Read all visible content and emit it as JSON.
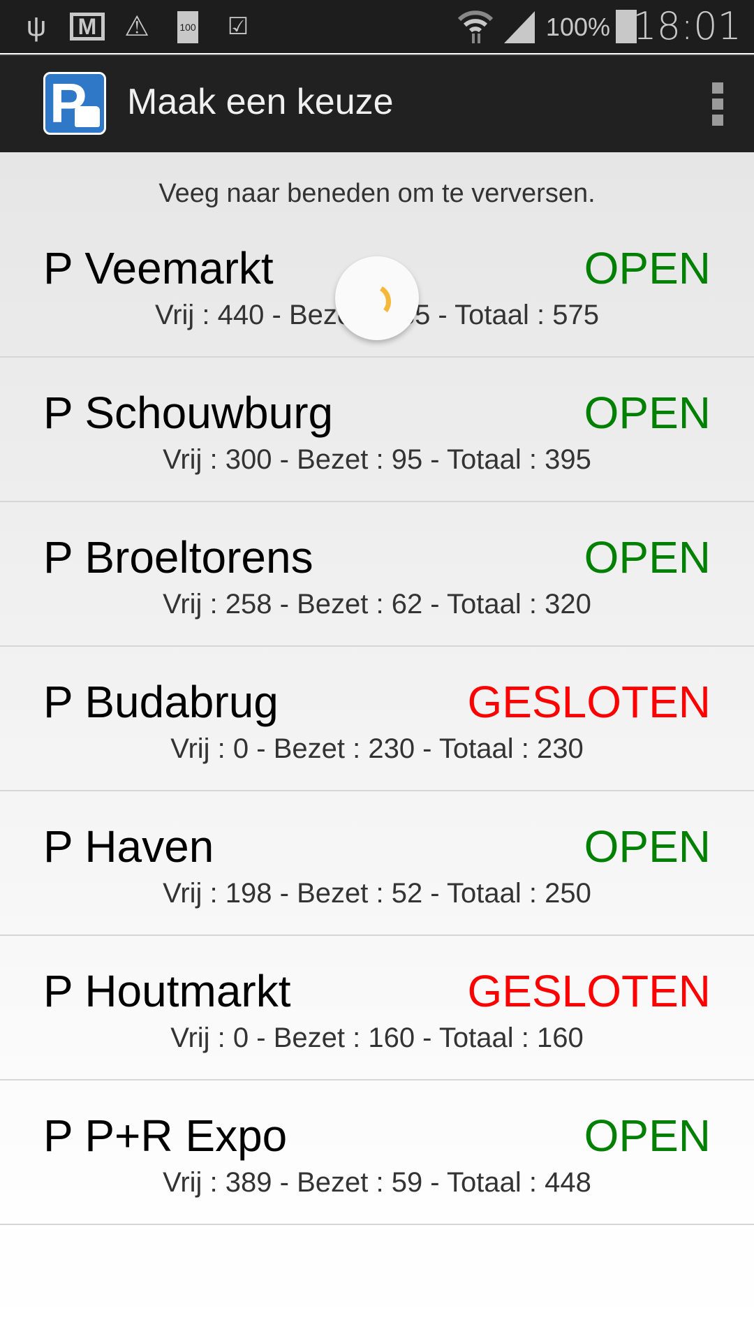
{
  "status_bar": {
    "icons": [
      "usb-icon",
      "gmail-icon",
      "warning-icon",
      "battery-100-icon",
      "clipboard-check-icon",
      "wifi-icon",
      "signal-icon",
      "battery-icon"
    ],
    "battery_percent": "100%",
    "time": "18:01"
  },
  "action_bar": {
    "title": "Maak een keuze",
    "logo_letter": "P"
  },
  "hint": "Veeg naar beneden om te verversen.",
  "colors": {
    "open": "#008000",
    "closed": "#ff0000",
    "spinner": "#f6b83a"
  },
  "parkings": [
    {
      "name": "P Veemarkt",
      "status": "OPEN",
      "stats": "Vrij : 440 - Bezet : 135 - Totaal : 575"
    },
    {
      "name": "P Schouwburg",
      "status": "OPEN",
      "stats": "Vrij : 300 - Bezet : 95 - Totaal : 395"
    },
    {
      "name": "P Broeltorens",
      "status": "OPEN",
      "stats": "Vrij : 258 - Bezet : 62 - Totaal : 320"
    },
    {
      "name": "P Budabrug",
      "status": "GESLOTEN",
      "stats": "Vrij : 0 - Bezet : 230 - Totaal : 230"
    },
    {
      "name": "P Haven",
      "status": "OPEN",
      "stats": "Vrij : 198 - Bezet : 52 - Totaal : 250"
    },
    {
      "name": "P Houtmarkt",
      "status": "GESLOTEN",
      "stats": "Vrij : 0 - Bezet : 160 - Totaal : 160"
    },
    {
      "name": "P P+R Expo",
      "status": "OPEN",
      "stats": "Vrij : 389 - Bezet : 59 - Totaal : 448"
    }
  ]
}
